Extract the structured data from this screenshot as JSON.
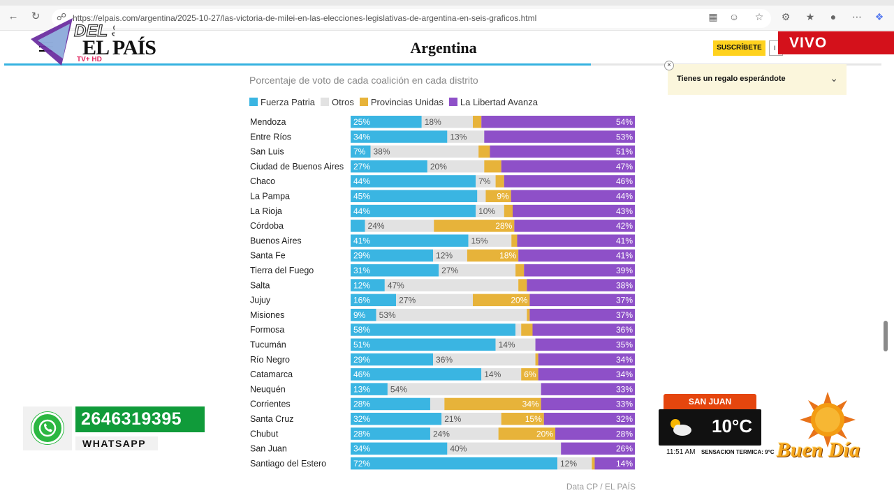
{
  "browser": {
    "url": "https://elpais.com/argentina/2025-10-27/las-victoria-de-milei-en-las-elecciones-legislativas-de-argentina-en-seis-graficos.html"
  },
  "header": {
    "logo": "EL PAÍS",
    "section": "Argentina",
    "subscribe_label": "SUSCRÍBETE",
    "login_label": "I"
  },
  "overlay": {
    "logo": "DEL SUR",
    "logo_sub": "TV+ HD",
    "live_label": "VIVO"
  },
  "gift": {
    "text": "Tienes un regalo esperándote"
  },
  "chart_data": {
    "type": "bar",
    "orientation": "horizontal",
    "stacked": true,
    "subtitle": "Porcentaje de voto de cada coalición en cada distrito",
    "source": "Data CP / EL PAÍS",
    "legend": [
      "Fuerza Patria",
      "Otros",
      "Provincias Unidas",
      "La Libertad Avanza"
    ],
    "colors": {
      "fp": "#3ab5e2",
      "otros": "#e2e2e2",
      "pu": "#e7b33a",
      "lla": "#8e50c8"
    },
    "categories": [
      "Mendoza",
      "Entre Ríos",
      "San Luis",
      "Ciudad de Buenos Aires",
      "Chaco",
      "La Pampa",
      "La Rioja",
      "Córdoba",
      "Buenos Aires",
      "Santa Fe",
      "Tierra del Fuego",
      "Salta",
      "Jujuy",
      "Misiones",
      "Formosa",
      "Tucumán",
      "Río Negro",
      "Catamarca",
      "Neuquén",
      "Corrientes",
      "Santa Cruz",
      "Chubut",
      "San Juan",
      "Santiago del Estero"
    ],
    "series": [
      {
        "name": "Fuerza Patria",
        "key": "fp",
        "values": [
          25,
          34,
          7,
          27,
          44,
          45,
          44,
          5,
          41,
          29,
          31,
          12,
          16,
          9,
          58,
          51,
          29,
          46,
          13,
          28,
          32,
          28,
          34,
          72
        ]
      },
      {
        "name": "Otros",
        "key": "otros",
        "values": [
          18,
          13,
          38,
          20,
          7,
          3,
          10,
          24,
          15,
          12,
          27,
          47,
          27,
          53,
          2,
          14,
          36,
          14,
          54,
          5,
          21,
          24,
          40,
          12
        ]
      },
      {
        "name": "Provincias Unidas",
        "key": "pu",
        "values": [
          3,
          0,
          4,
          6,
          3,
          9,
          3,
          28,
          2,
          18,
          3,
          3,
          20,
          1,
          4,
          0,
          1,
          6,
          0,
          34,
          15,
          20,
          0,
          1
        ]
      },
      {
        "name": "La Libertad Avanza",
        "key": "lla",
        "values": [
          54,
          53,
          51,
          47,
          46,
          44,
          43,
          42,
          41,
          41,
          39,
          38,
          37,
          37,
          36,
          35,
          34,
          34,
          33,
          33,
          32,
          28,
          26,
          14
        ]
      }
    ],
    "labels": {
      "fp": [
        "25%",
        "34%",
        "7%",
        "27%",
        "44%",
        "45%",
        "44%",
        "",
        "41%",
        "29%",
        "31%",
        "12%",
        "16%",
        "9%",
        "58%",
        "51%",
        "29%",
        "46%",
        "13%",
        "28%",
        "32%",
        "28%",
        "34%",
        "72%"
      ],
      "otros": [
        "18%",
        "13%",
        "38%",
        "20%",
        "7%",
        "",
        "10%",
        "24%",
        "15%",
        "12%",
        "27%",
        "47%",
        "27%",
        "53%",
        "",
        "14%",
        "36%",
        "14%",
        "54%",
        "",
        "21%",
        "24%",
        "40%",
        "12%"
      ],
      "pu": [
        "",
        "",
        "",
        "",
        "",
        "9%",
        "",
        "28%",
        "",
        "18%",
        "",
        "",
        "20%",
        "",
        "",
        "",
        "",
        "6%",
        "",
        "34%",
        "15%",
        "20%",
        "",
        ""
      ],
      "lla": [
        "54%",
        "53%",
        "51%",
        "47%",
        "46%",
        "44%",
        "43%",
        "42%",
        "41%",
        "41%",
        "39%",
        "38%",
        "37%",
        "37%",
        "36%",
        "35%",
        "34%",
        "34%",
        "33%",
        "33%",
        "32%",
        "28%",
        "26%",
        "14%"
      ]
    }
  },
  "whatsapp": {
    "number": "2646319395",
    "label": "WHATSAPP"
  },
  "weather": {
    "city": "SAN JUAN",
    "temp": "10°C",
    "time": "11:51 AM",
    "feel": "SENSACION TERMICA: 9°C"
  },
  "show": {
    "name": "Buen Día"
  }
}
